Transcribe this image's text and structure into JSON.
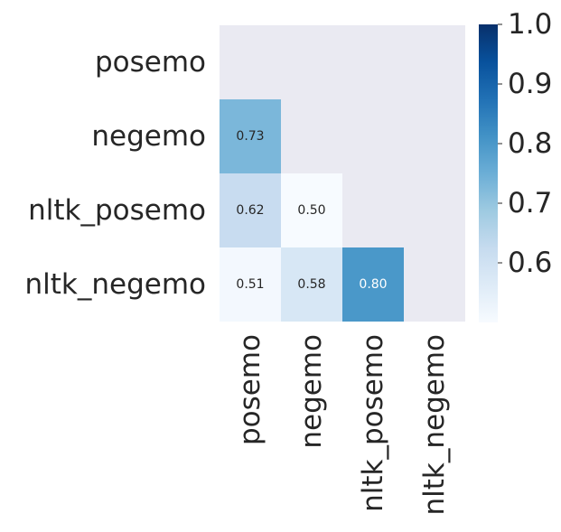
{
  "chart_data": {
    "type": "heatmap",
    "title": "",
    "xlabel": "",
    "ylabel": "",
    "x_categories": [
      "posemo",
      "negemo",
      "nltk_posemo",
      "nltk_negemo"
    ],
    "y_categories": [
      "posemo",
      "negemo",
      "nltk_posemo",
      "nltk_negemo"
    ],
    "mask": "upper-triangle-including-diagonal",
    "cells": [
      {
        "row": "negemo",
        "col": "posemo",
        "value": 0.73,
        "label": "0.73"
      },
      {
        "row": "nltk_posemo",
        "col": "posemo",
        "value": 0.62,
        "label": "0.62"
      },
      {
        "row": "nltk_posemo",
        "col": "negemo",
        "value": 0.5,
        "label": "0.50"
      },
      {
        "row": "nltk_negemo",
        "col": "posemo",
        "value": 0.51,
        "label": "0.51"
      },
      {
        "row": "nltk_negemo",
        "col": "negemo",
        "value": 0.58,
        "label": "0.58"
      },
      {
        "row": "nltk_negemo",
        "col": "nltk_posemo",
        "value": 0.8,
        "label": "0.80"
      }
    ],
    "colorbar": {
      "min": 0.5,
      "max": 1.0,
      "ticks": [
        0.6,
        0.7,
        0.8,
        0.9,
        1.0
      ],
      "tick_labels": [
        "0.6",
        "0.7",
        "0.8",
        "0.9",
        "1.0"
      ],
      "colormap": "Blues"
    },
    "colors": {
      "masked_background": "#eaeaf2",
      "text_dark": "#262626",
      "text_light": "#ffffff",
      "cmap_stops": [
        "#f7fbff",
        "#deebf7",
        "#c6dbef",
        "#9ecae1",
        "#6baed6",
        "#4292c6",
        "#2171b5",
        "#08519c",
        "#08306b"
      ]
    }
  }
}
